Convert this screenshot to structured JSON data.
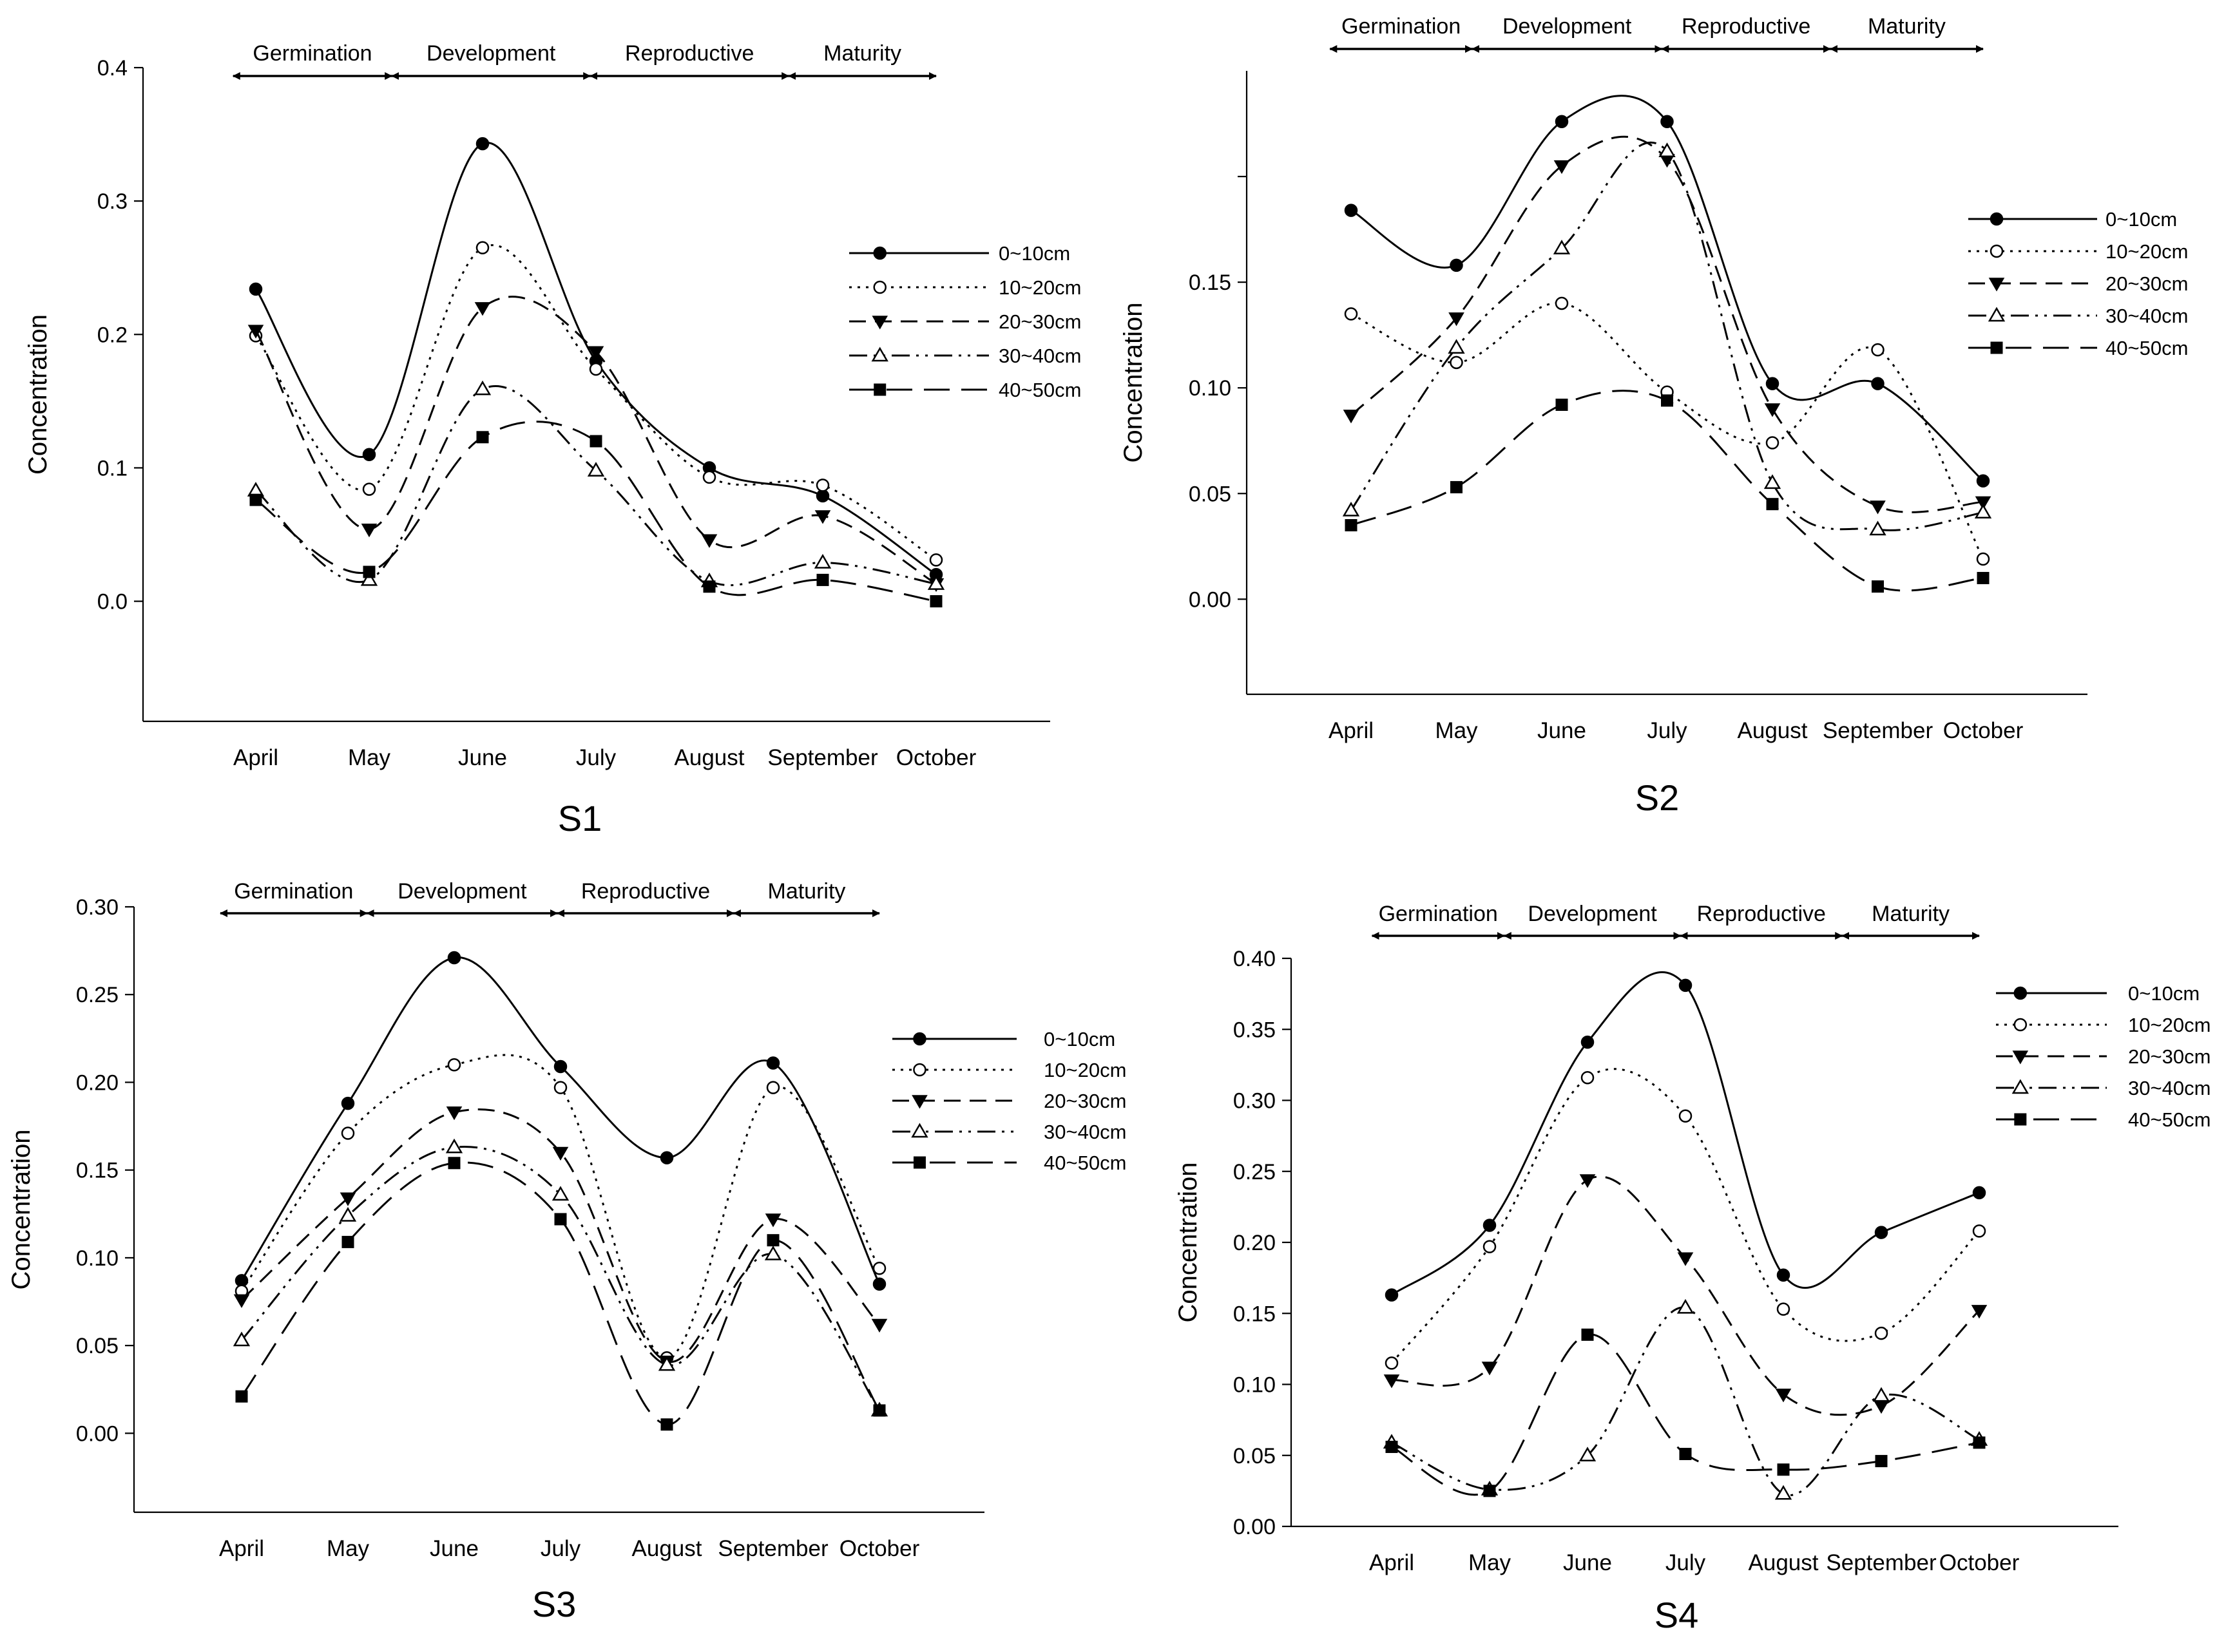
{
  "figure": {
    "layout": "2x2 grid",
    "panel_order": [
      "S1",
      "S2",
      "S3",
      "S4"
    ]
  },
  "chart_data": [
    {
      "type": "line",
      "title": "S1",
      "xlabel": "",
      "ylabel": "Concentration",
      "categories": [
        "April",
        "May",
        "June",
        "July",
        "August",
        "September",
        "October"
      ],
      "ylim": [
        -0.09,
        0.4
      ],
      "yticks": [
        0.0,
        0.1,
        0.2,
        0.3,
        0.4
      ],
      "ytick_labels": [
        "0.0",
        "0.1",
        "0.2",
        "0.3",
        "0.4"
      ],
      "stages": [
        {
          "label": "Germination",
          "from": -0.2,
          "to": 1.2
        },
        {
          "label": "Development",
          "from": 1.2,
          "to": 2.95
        },
        {
          "label": "Reproductive",
          "from": 2.95,
          "to": 4.7
        },
        {
          "label": "Maturity",
          "from": 4.7,
          "to": 6.0
        }
      ],
      "legend_position": "right",
      "series": [
        {
          "name": "0~10cm",
          "marker": "circle-filled",
          "dash": "solid",
          "values": [
            0.234,
            0.11,
            0.343,
            0.18,
            0.1,
            0.079,
            0.02
          ]
        },
        {
          "name": "10~20cm",
          "marker": "circle-open",
          "dash": "dotted",
          "values": [
            0.199,
            0.084,
            0.265,
            0.174,
            0.093,
            0.087,
            0.031
          ]
        },
        {
          "name": "20~30cm",
          "marker": "triangle-down-filled",
          "dash": "dashed",
          "values": [
            0.203,
            0.054,
            0.22,
            0.187,
            0.046,
            0.064,
            0.013
          ]
        },
        {
          "name": "30~40cm",
          "marker": "triangle-up-open",
          "dash": "dashdotdot",
          "values": [
            0.083,
            0.016,
            0.159,
            0.098,
            0.015,
            0.029,
            0.013
          ]
        },
        {
          "name": "40~50cm",
          "marker": "square-filled",
          "dash": "longdash",
          "values": [
            0.076,
            0.022,
            0.123,
            0.12,
            0.011,
            0.016,
            0.0
          ]
        }
      ]
    },
    {
      "type": "line",
      "title": "S2",
      "xlabel": "",
      "ylabel": "Concentration",
      "categories": [
        "April",
        "May",
        "June",
        "July",
        "August",
        "September",
        "October"
      ],
      "ylim": [
        -0.045,
        0.25
      ],
      "yticks": [
        0.0,
        0.05,
        0.1,
        0.15
      ],
      "ytick_labels": [
        "0.00",
        "0.05",
        "0.10",
        "0.15"
      ],
      "extra_unlabeled_ytick": 0.2,
      "stages": [
        {
          "label": "Germination",
          "from": -0.2,
          "to": 1.15
        },
        {
          "label": "Development",
          "from": 1.15,
          "to": 2.95
        },
        {
          "label": "Reproductive",
          "from": 2.95,
          "to": 4.55
        },
        {
          "label": "Maturity",
          "from": 4.55,
          "to": 6.0
        }
      ],
      "legend_position": "right",
      "series": [
        {
          "name": "0~10cm",
          "marker": "circle-filled",
          "dash": "solid",
          "values": [
            0.184,
            0.158,
            0.226,
            0.226,
            0.102,
            0.102,
            0.056
          ]
        },
        {
          "name": "10~20cm",
          "marker": "circle-open",
          "dash": "dotted",
          "values": [
            0.135,
            0.112,
            0.14,
            0.098,
            0.074,
            0.118,
            0.019
          ]
        },
        {
          "name": "20~30cm",
          "marker": "triangle-down-filled",
          "dash": "dashed",
          "values": [
            0.087,
            0.133,
            0.205,
            0.208,
            0.09,
            0.044,
            0.046
          ]
        },
        {
          "name": "30~40cm",
          "marker": "triangle-up-open",
          "dash": "dashdotdot",
          "values": [
            0.042,
            0.119,
            0.166,
            0.212,
            0.055,
            0.033,
            0.041
          ]
        },
        {
          "name": "40~50cm",
          "marker": "square-filled",
          "dash": "longdash",
          "values": [
            0.035,
            0.053,
            0.092,
            0.094,
            0.045,
            0.006,
            0.01
          ]
        }
      ]
    },
    {
      "type": "line",
      "title": "S3",
      "xlabel": "",
      "ylabel": "Concentration",
      "categories": [
        "April",
        "May",
        "June",
        "July",
        "August",
        "September",
        "October"
      ],
      "ylim": [
        -0.045,
        0.3
      ],
      "yticks": [
        0.0,
        0.05,
        0.1,
        0.15,
        0.2,
        0.25,
        0.3
      ],
      "ytick_labels": [
        "0.00",
        "0.05",
        "0.10",
        "0.15",
        "0.20",
        "0.25",
        "0.30"
      ],
      "stages": [
        {
          "label": "Germination",
          "from": -0.2,
          "to": 1.18
        },
        {
          "label": "Development",
          "from": 1.18,
          "to": 2.97
        },
        {
          "label": "Reproductive",
          "from": 2.97,
          "to": 4.63
        },
        {
          "label": "Maturity",
          "from": 4.63,
          "to": 6.0
        }
      ],
      "legend_position": "right",
      "series": [
        {
          "name": "0~10cm",
          "marker": "circle-filled",
          "dash": "solid",
          "values": [
            0.087,
            0.188,
            0.271,
            0.209,
            0.157,
            0.211,
            0.085
          ]
        },
        {
          "name": "10~20cm",
          "marker": "circle-open",
          "dash": "dotted",
          "values": [
            0.081,
            0.171,
            0.21,
            0.197,
            0.043,
            0.197,
            0.094
          ]
        },
        {
          "name": "20~30cm",
          "marker": "triangle-down-filled",
          "dash": "dashed",
          "values": [
            0.076,
            0.134,
            0.183,
            0.16,
            0.041,
            0.122,
            0.062
          ]
        },
        {
          "name": "30~40cm",
          "marker": "triangle-up-open",
          "dash": "dashdotdot",
          "values": [
            0.053,
            0.124,
            0.163,
            0.136,
            0.039,
            0.102,
            0.013
          ]
        },
        {
          "name": "40~50cm",
          "marker": "square-filled",
          "dash": "longdash",
          "values": [
            0.021,
            0.109,
            0.154,
            0.122,
            0.005,
            0.11,
            0.013
          ]
        }
      ]
    },
    {
      "type": "line",
      "title": "S4",
      "xlabel": "",
      "ylabel": "Concentration",
      "categories": [
        "April",
        "May",
        "June",
        "July",
        "August",
        "September",
        "October"
      ],
      "ylim": [
        0.0,
        0.4
      ],
      "yticks": [
        0.0,
        0.05,
        0.1,
        0.15,
        0.2,
        0.25,
        0.3,
        0.35,
        0.4
      ],
      "ytick_labels": [
        "0.00",
        "0.05",
        "0.10",
        "0.15",
        "0.20",
        "0.25",
        "0.30",
        "0.35",
        "0.40"
      ],
      "stages": [
        {
          "label": "Germination",
          "from": -0.2,
          "to": 1.15
        },
        {
          "label": "Development",
          "from": 1.15,
          "to": 2.95
        },
        {
          "label": "Reproductive",
          "from": 2.95,
          "to": 4.6
        },
        {
          "label": "Maturity",
          "from": 4.6,
          "to": 6.0
        }
      ],
      "legend_position": "right",
      "series": [
        {
          "name": "0~10cm",
          "legend_label": "0~10cm",
          "marker": "circle-filled",
          "dash": "solid",
          "values": [
            0.163,
            0.212,
            0.341,
            0.381,
            0.177,
            0.207,
            0.235
          ]
        },
        {
          "name": "10~20cm",
          "legend_label": "10~20cm",
          "marker": "circle-open",
          "dash": "dotted",
          "values": [
            0.115,
            0.197,
            0.316,
            0.289,
            0.153,
            0.136,
            0.208
          ]
        },
        {
          "name": "20~30cm",
          "legend_label": "20~30cm",
          "marker": "triangle-down-filled",
          "dash": "dashed",
          "values": [
            0.103,
            0.112,
            0.244,
            0.189,
            0.093,
            0.085,
            0.152
          ]
        },
        {
          "name": "30~40cm",
          "legend_label": "30~40cm",
          "marker": "triangle-up-open",
          "dash": "dashdotdot",
          "values": [
            0.059,
            0.026,
            0.05,
            0.154,
            0.023,
            0.092,
            0.061
          ]
        },
        {
          "name": "40~50cm",
          "legend_label": "40~50cm",
          "marker": "square-filled",
          "dash": "longdash",
          "values": [
            0.056,
            0.025,
            0.135,
            0.051,
            0.04,
            0.046,
            0.059
          ]
        }
      ]
    }
  ]
}
